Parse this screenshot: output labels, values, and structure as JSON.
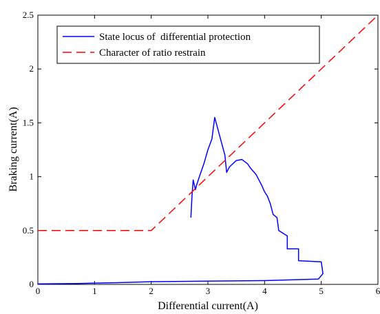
{
  "chart_data": {
    "type": "line",
    "xlabel": "Differential current(A)",
    "ylabel": "Braking current(A)",
    "xlim": [
      0,
      6
    ],
    "ylim": [
      0,
      2.5
    ],
    "x_ticks": [
      0,
      1,
      2,
      3,
      4,
      5,
      6
    ],
    "y_ticks": [
      0,
      0.5,
      1,
      1.5,
      2,
      2.5
    ],
    "x_tick_labels": [
      "0",
      "1",
      "2",
      "3",
      "4",
      "5",
      "6"
    ],
    "y_tick_labels": [
      "0",
      "0.5",
      "1",
      "1.5",
      "2",
      "2.5"
    ],
    "grid": false,
    "legend_position": "top-left",
    "series": [
      {
        "name": "State locus of  differential protection",
        "color": "#0000ff",
        "style": "solid",
        "points": [
          [
            0,
            0.005
          ],
          [
            0.7,
            0.008
          ],
          [
            1.0,
            0.012
          ],
          [
            1.4,
            0.016
          ],
          [
            2.0,
            0.025
          ],
          [
            3.0,
            0.03
          ],
          [
            4.0,
            0.035
          ],
          [
            4.95,
            0.05
          ],
          [
            5.03,
            0.1
          ],
          [
            5.0,
            0.21
          ],
          [
            4.6,
            0.22
          ],
          [
            4.6,
            0.33
          ],
          [
            4.4,
            0.33
          ],
          [
            4.4,
            0.45
          ],
          [
            4.25,
            0.5
          ],
          [
            4.22,
            0.62
          ],
          [
            4.15,
            0.65
          ],
          [
            4.1,
            0.75
          ],
          [
            4.05,
            0.82
          ],
          [
            4.0,
            0.86
          ],
          [
            3.95,
            0.92
          ],
          [
            3.9,
            0.97
          ],
          [
            3.85,
            1.02
          ],
          [
            3.8,
            1.05
          ],
          [
            3.75,
            1.08
          ],
          [
            3.7,
            1.12
          ],
          [
            3.6,
            1.16
          ],
          [
            3.5,
            1.15
          ],
          [
            3.38,
            1.09
          ],
          [
            3.33,
            1.04
          ],
          [
            3.3,
            1.2
          ],
          [
            3.12,
            1.55
          ],
          [
            3.07,
            1.35
          ],
          [
            3.0,
            1.25
          ],
          [
            2.93,
            1.12
          ],
          [
            2.85,
            1.0
          ],
          [
            2.8,
            0.92
          ],
          [
            2.78,
            0.88
          ],
          [
            2.74,
            0.97
          ],
          [
            2.72,
            0.82
          ],
          [
            2.7,
            0.62
          ]
        ]
      },
      {
        "name": "Character of ratio restrain",
        "color": "#ff0000",
        "style": "dashed",
        "points": [
          [
            0,
            0.5
          ],
          [
            2,
            0.5
          ],
          [
            6,
            2.5
          ]
        ]
      }
    ]
  }
}
